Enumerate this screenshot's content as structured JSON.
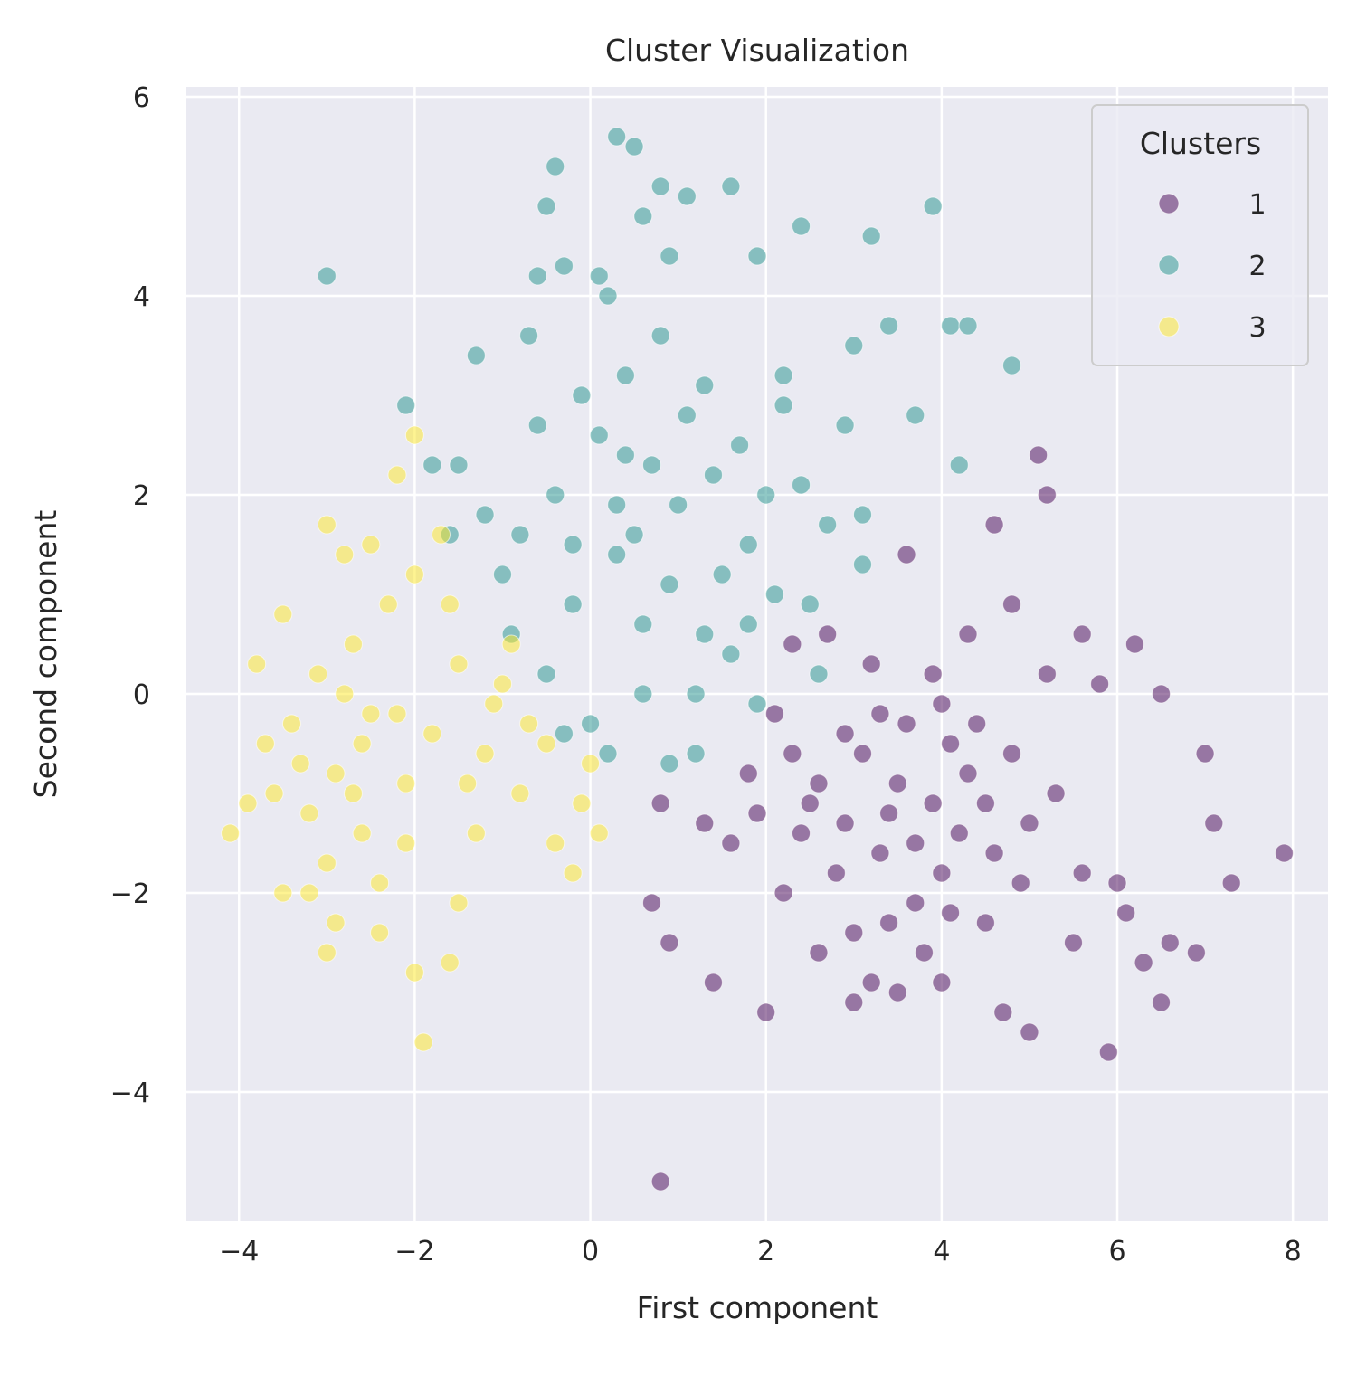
{
  "chart_data": {
    "type": "scatter",
    "title": "Cluster Visualization",
    "xlabel": "First component",
    "ylabel": "Second component",
    "xlim": [
      -4.6,
      8.4
    ],
    "ylim": [
      -5.3,
      6.1
    ],
    "xticks": [
      -4,
      -2,
      0,
      2,
      4,
      6,
      8
    ],
    "yticks": [
      -4,
      -2,
      0,
      2,
      4,
      6
    ],
    "xtick_labels": [
      "−4",
      "−2",
      "0",
      "2",
      "4",
      "6",
      "8"
    ],
    "ytick_labels": [
      "−4",
      "−2",
      "0",
      "2",
      "4",
      "6"
    ],
    "grid": true,
    "legend": {
      "title": "Clusters",
      "position": "top-right"
    },
    "series": [
      {
        "name": "1",
        "color": "#440154",
        "points": [
          [
            3.4,
            -1.2
          ],
          [
            4.1,
            -0.5
          ],
          [
            2.8,
            -1.8
          ],
          [
            3.9,
            -1.1
          ],
          [
            4.6,
            -1.6
          ],
          [
            3.1,
            -0.6
          ],
          [
            2.4,
            -1.4
          ],
          [
            3.7,
            -2.1
          ],
          [
            4.3,
            -0.8
          ],
          [
            5.0,
            -1.3
          ],
          [
            2.6,
            -0.9
          ],
          [
            3.3,
            -1.6
          ],
          [
            4.8,
            -0.6
          ],
          [
            3.6,
            -0.3
          ],
          [
            2.2,
            -2.0
          ],
          [
            4.0,
            -1.8
          ],
          [
            3.0,
            -2.4
          ],
          [
            4.5,
            -2.3
          ],
          [
            5.3,
            -1.0
          ],
          [
            2.9,
            -0.4
          ],
          [
            3.8,
            -2.6
          ],
          [
            4.2,
            -1.4
          ],
          [
            2.5,
            -1.1
          ],
          [
            3.5,
            -0.9
          ],
          [
            1.9,
            -1.2
          ],
          [
            4.9,
            -1.9
          ],
          [
            3.2,
            -2.9
          ],
          [
            5.6,
            -1.8
          ],
          [
            4.4,
            -0.3
          ],
          [
            3.9,
            0.2
          ],
          [
            2.7,
            0.6
          ],
          [
            5.1,
            2.4
          ],
          [
            4.6,
            1.7
          ],
          [
            3.6,
            1.4
          ],
          [
            5.2,
            0.2
          ],
          [
            4.8,
            0.9
          ],
          [
            6.0,
            -1.9
          ],
          [
            6.3,
            -2.7
          ],
          [
            6.6,
            -2.5
          ],
          [
            7.1,
            -1.3
          ],
          [
            7.3,
            -1.9
          ],
          [
            6.5,
            0.0
          ],
          [
            7.9,
            -1.6
          ],
          [
            5.9,
            -3.6
          ],
          [
            6.5,
            -3.1
          ],
          [
            5.0,
            -3.4
          ],
          [
            4.7,
            -3.2
          ],
          [
            2.0,
            -3.2
          ],
          [
            1.4,
            -2.9
          ],
          [
            0.9,
            -2.5
          ],
          [
            0.8,
            -1.1
          ],
          [
            0.7,
            -2.1
          ],
          [
            0.8,
            -4.9
          ],
          [
            1.8,
            -0.8
          ],
          [
            2.1,
            -0.2
          ],
          [
            2.3,
            0.5
          ],
          [
            5.2,
            2.0
          ],
          [
            5.6,
            0.6
          ],
          [
            6.2,
            0.5
          ],
          [
            5.8,
            0.1
          ],
          [
            3.0,
            -3.1
          ],
          [
            3.5,
            -3.0
          ],
          [
            4.0,
            -2.9
          ],
          [
            5.5,
            -2.5
          ],
          [
            6.1,
            -2.2
          ],
          [
            6.9,
            -2.6
          ],
          [
            7.0,
            -0.6
          ],
          [
            2.6,
            -2.6
          ],
          [
            1.6,
            -1.5
          ],
          [
            1.3,
            -1.3
          ],
          [
            3.2,
            0.3
          ],
          [
            4.3,
            0.6
          ],
          [
            4.0,
            -0.1
          ],
          [
            3.3,
            -0.2
          ],
          [
            2.9,
            -1.3
          ],
          [
            3.7,
            -1.5
          ],
          [
            4.5,
            -1.1
          ],
          [
            2.3,
            -0.6
          ],
          [
            4.1,
            -2.2
          ],
          [
            3.4,
            -2.3
          ]
        ]
      },
      {
        "name": "2",
        "color": "#21918c",
        "points": [
          [
            0.3,
            1.4
          ],
          [
            -0.4,
            2.0
          ],
          [
            0.9,
            1.1
          ],
          [
            1.4,
            2.2
          ],
          [
            0.1,
            2.6
          ],
          [
            -0.8,
            1.6
          ],
          [
            0.6,
            0.7
          ],
          [
            1.8,
            1.5
          ],
          [
            -0.2,
            0.9
          ],
          [
            1.1,
            2.8
          ],
          [
            0.4,
            3.2
          ],
          [
            -1.2,
            1.8
          ],
          [
            2.1,
            1.0
          ],
          [
            1.6,
            0.4
          ],
          [
            -0.6,
            2.7
          ],
          [
            0.8,
            3.6
          ],
          [
            2.4,
            2.1
          ],
          [
            1.2,
            0.0
          ],
          [
            0.0,
            -0.3
          ],
          [
            -1.5,
            2.3
          ],
          [
            -1.8,
            2.3
          ],
          [
            2.7,
            1.7
          ],
          [
            3.1,
            1.3
          ],
          [
            2.9,
            2.7
          ],
          [
            0.3,
            5.6
          ],
          [
            0.5,
            5.5
          ],
          [
            1.1,
            5.0
          ],
          [
            1.6,
            5.1
          ],
          [
            0.8,
            5.1
          ],
          [
            -0.4,
            5.3
          ],
          [
            -0.5,
            4.9
          ],
          [
            0.6,
            4.8
          ],
          [
            2.4,
            4.7
          ],
          [
            3.2,
            4.6
          ],
          [
            3.9,
            4.9
          ],
          [
            -3.0,
            4.2
          ],
          [
            -0.3,
            4.3
          ],
          [
            0.1,
            4.2
          ],
          [
            1.9,
            4.4
          ],
          [
            4.1,
            3.7
          ],
          [
            4.3,
            3.7
          ],
          [
            4.8,
            3.3
          ],
          [
            3.4,
            3.7
          ],
          [
            -1.3,
            3.4
          ],
          [
            -2.1,
            2.9
          ],
          [
            0.9,
            4.4
          ],
          [
            -0.6,
            4.2
          ],
          [
            0.2,
            4.0
          ],
          [
            1.3,
            3.1
          ],
          [
            2.2,
            3.2
          ],
          [
            3.0,
            3.5
          ],
          [
            4.2,
            2.3
          ],
          [
            3.7,
            2.8
          ],
          [
            0.3,
            1.9
          ],
          [
            -0.9,
            0.6
          ],
          [
            -0.3,
            -0.4
          ],
          [
            0.2,
            -0.6
          ],
          [
            0.9,
            -0.7
          ],
          [
            1.2,
            -0.6
          ],
          [
            1.9,
            -0.1
          ],
          [
            2.6,
            0.2
          ],
          [
            3.1,
            1.8
          ],
          [
            -1.6,
            1.6
          ],
          [
            -1.0,
            1.2
          ],
          [
            -0.5,
            0.2
          ],
          [
            0.5,
            1.6
          ],
          [
            1.7,
            2.5
          ],
          [
            2.2,
            2.9
          ],
          [
            -0.1,
            3.0
          ],
          [
            1.0,
            1.9
          ],
          [
            0.7,
            2.3
          ],
          [
            1.5,
            1.2
          ],
          [
            2.5,
            0.9
          ],
          [
            -0.7,
            3.6
          ],
          [
            0.4,
            2.4
          ],
          [
            1.3,
            0.6
          ],
          [
            2.0,
            2.0
          ],
          [
            -0.2,
            1.5
          ],
          [
            0.6,
            0.0
          ],
          [
            1.8,
            0.7
          ]
        ]
      },
      {
        "name": "3",
        "color": "#fde725",
        "points": [
          [
            -2.9,
            -0.8
          ],
          [
            -2.5,
            -0.2
          ],
          [
            -3.2,
            -1.2
          ],
          [
            -2.1,
            -0.9
          ],
          [
            -2.7,
            0.5
          ],
          [
            -3.4,
            -0.3
          ],
          [
            -1.8,
            -0.4
          ],
          [
            -2.3,
            0.9
          ],
          [
            -3.0,
            -1.7
          ],
          [
            -2.6,
            -1.4
          ],
          [
            -1.5,
            0.3
          ],
          [
            -2.0,
            1.2
          ],
          [
            -3.6,
            -1.0
          ],
          [
            -2.8,
            1.4
          ],
          [
            -1.2,
            -0.6
          ],
          [
            -2.4,
            -1.9
          ],
          [
            -3.1,
            0.2
          ],
          [
            -1.7,
            1.6
          ],
          [
            -2.2,
            2.2
          ],
          [
            -2.0,
            2.6
          ],
          [
            -3.0,
            1.7
          ],
          [
            -3.8,
            0.3
          ],
          [
            -4.1,
            -1.4
          ],
          [
            -3.9,
            -1.1
          ],
          [
            -3.5,
            -2.0
          ],
          [
            -3.0,
            -2.6
          ],
          [
            -2.9,
            -2.3
          ],
          [
            -2.4,
            -2.4
          ],
          [
            -2.0,
            -2.8
          ],
          [
            -1.6,
            -2.7
          ],
          [
            -1.9,
            -3.5
          ],
          [
            -1.5,
            -2.1
          ],
          [
            -0.8,
            -1.0
          ],
          [
            -0.4,
            -1.5
          ],
          [
            -0.1,
            -1.1
          ],
          [
            -0.2,
            -1.8
          ],
          [
            0.1,
            -1.4
          ],
          [
            0.0,
            -0.7
          ],
          [
            -0.5,
            -0.5
          ],
          [
            -0.9,
            0.5
          ],
          [
            -1.1,
            -0.1
          ],
          [
            -1.3,
            -1.4
          ],
          [
            -2.6,
            -0.5
          ],
          [
            -3.3,
            -0.7
          ],
          [
            -2.7,
            -1.0
          ],
          [
            -2.2,
            -0.2
          ],
          [
            -1.6,
            0.9
          ],
          [
            -2.5,
            1.5
          ],
          [
            -3.5,
            0.8
          ],
          [
            -3.7,
            -0.5
          ],
          [
            -3.2,
            -2.0
          ],
          [
            -2.1,
            -1.5
          ],
          [
            -1.4,
            -0.9
          ],
          [
            -1.0,
            0.1
          ],
          [
            -0.7,
            -0.3
          ],
          [
            -2.8,
            0.0
          ]
        ]
      }
    ]
  }
}
